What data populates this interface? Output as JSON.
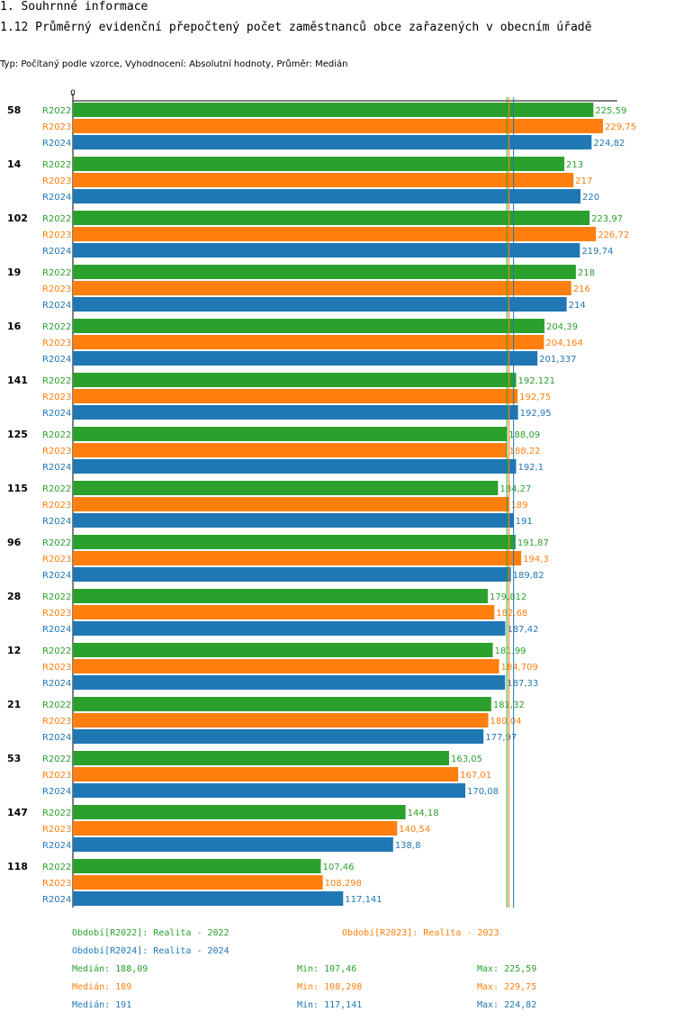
{
  "header": {
    "section": "1. Souhrnné informace",
    "title": "1.12 Průměrný evidenční přepočtený počet zaměstnanců obce zařazených v obecním úřadě",
    "subtitle": "Typ: Počítaný podle vzorce, Vyhodnocení: Absolutní hodnoty, Průměr: Medián"
  },
  "chart_data": {
    "type": "bar",
    "orientation": "horizontal",
    "x_axis_start_label": "0",
    "categories": [
      "58",
      "14",
      "102",
      "19",
      "16",
      "141",
      "125",
      "115",
      "96",
      "28",
      "12",
      "21",
      "53",
      "147",
      "118"
    ],
    "series": [
      {
        "name": "R2022",
        "color": "#2ca02c",
        "values": [
          225.59,
          213,
          223.97,
          218,
          204.39,
          192.121,
          188.09,
          184.27,
          191.87,
          179.812,
          181.99,
          181.32,
          163.05,
          144.18,
          107.46
        ],
        "labels": [
          "225,59",
          "213",
          "223,97",
          "218",
          "204,39",
          "192,121",
          "188,09",
          "184,27",
          "191,87",
          "179,812",
          "181,99",
          "181,32",
          "163,05",
          "144,18",
          "107,46"
        ]
      },
      {
        "name": "R2023",
        "color": "#ff7f0e",
        "values": [
          229.75,
          217,
          226.72,
          216,
          204.164,
          192.75,
          188.22,
          189,
          194.3,
          182.68,
          184.709,
          180.04,
          167.01,
          140.54,
          108.298
        ],
        "labels": [
          "229,75",
          "217",
          "226,72",
          "216",
          "204,164",
          "192,75",
          "188,22",
          "189",
          "194,3",
          "182,68",
          "184,709",
          "180,04",
          "167,01",
          "140,54",
          "108,298"
        ]
      },
      {
        "name": "R2024",
        "color": "#1f77b4",
        "values": [
          224.82,
          220,
          219.74,
          214,
          201.337,
          192.95,
          192.1,
          191,
          189.82,
          187.42,
          187.33,
          177.97,
          170.08,
          138.8,
          117.141
        ],
        "labels": [
          "224,82",
          "220",
          "219,74",
          "214",
          "201,337",
          "192,95",
          "192,1",
          "191",
          "189,82",
          "187,42",
          "187,33",
          "177,97",
          "170,08",
          "138,8",
          "117,141"
        ]
      }
    ],
    "medians": [
      188.09,
      189,
      191
    ],
    "xlim": [
      0,
      236
    ]
  },
  "legend": {
    "periods": [
      {
        "text": "Období[R2022]: Realita - 2022"
      },
      {
        "text": "Období[R2023]: Realita - 2023"
      },
      {
        "text": "Období[R2024]: Realita - 2024"
      }
    ],
    "stats": [
      {
        "median": "Medián: 188,09",
        "min": "Min: 107,46",
        "max": "Max: 225,59"
      },
      {
        "median": "Medián: 189",
        "min": "Min: 108,298",
        "max": "Max: 229,75"
      },
      {
        "median": "Medián: 191",
        "min": "Min: 117,141",
        "max": "Max: 224,82"
      }
    ]
  }
}
